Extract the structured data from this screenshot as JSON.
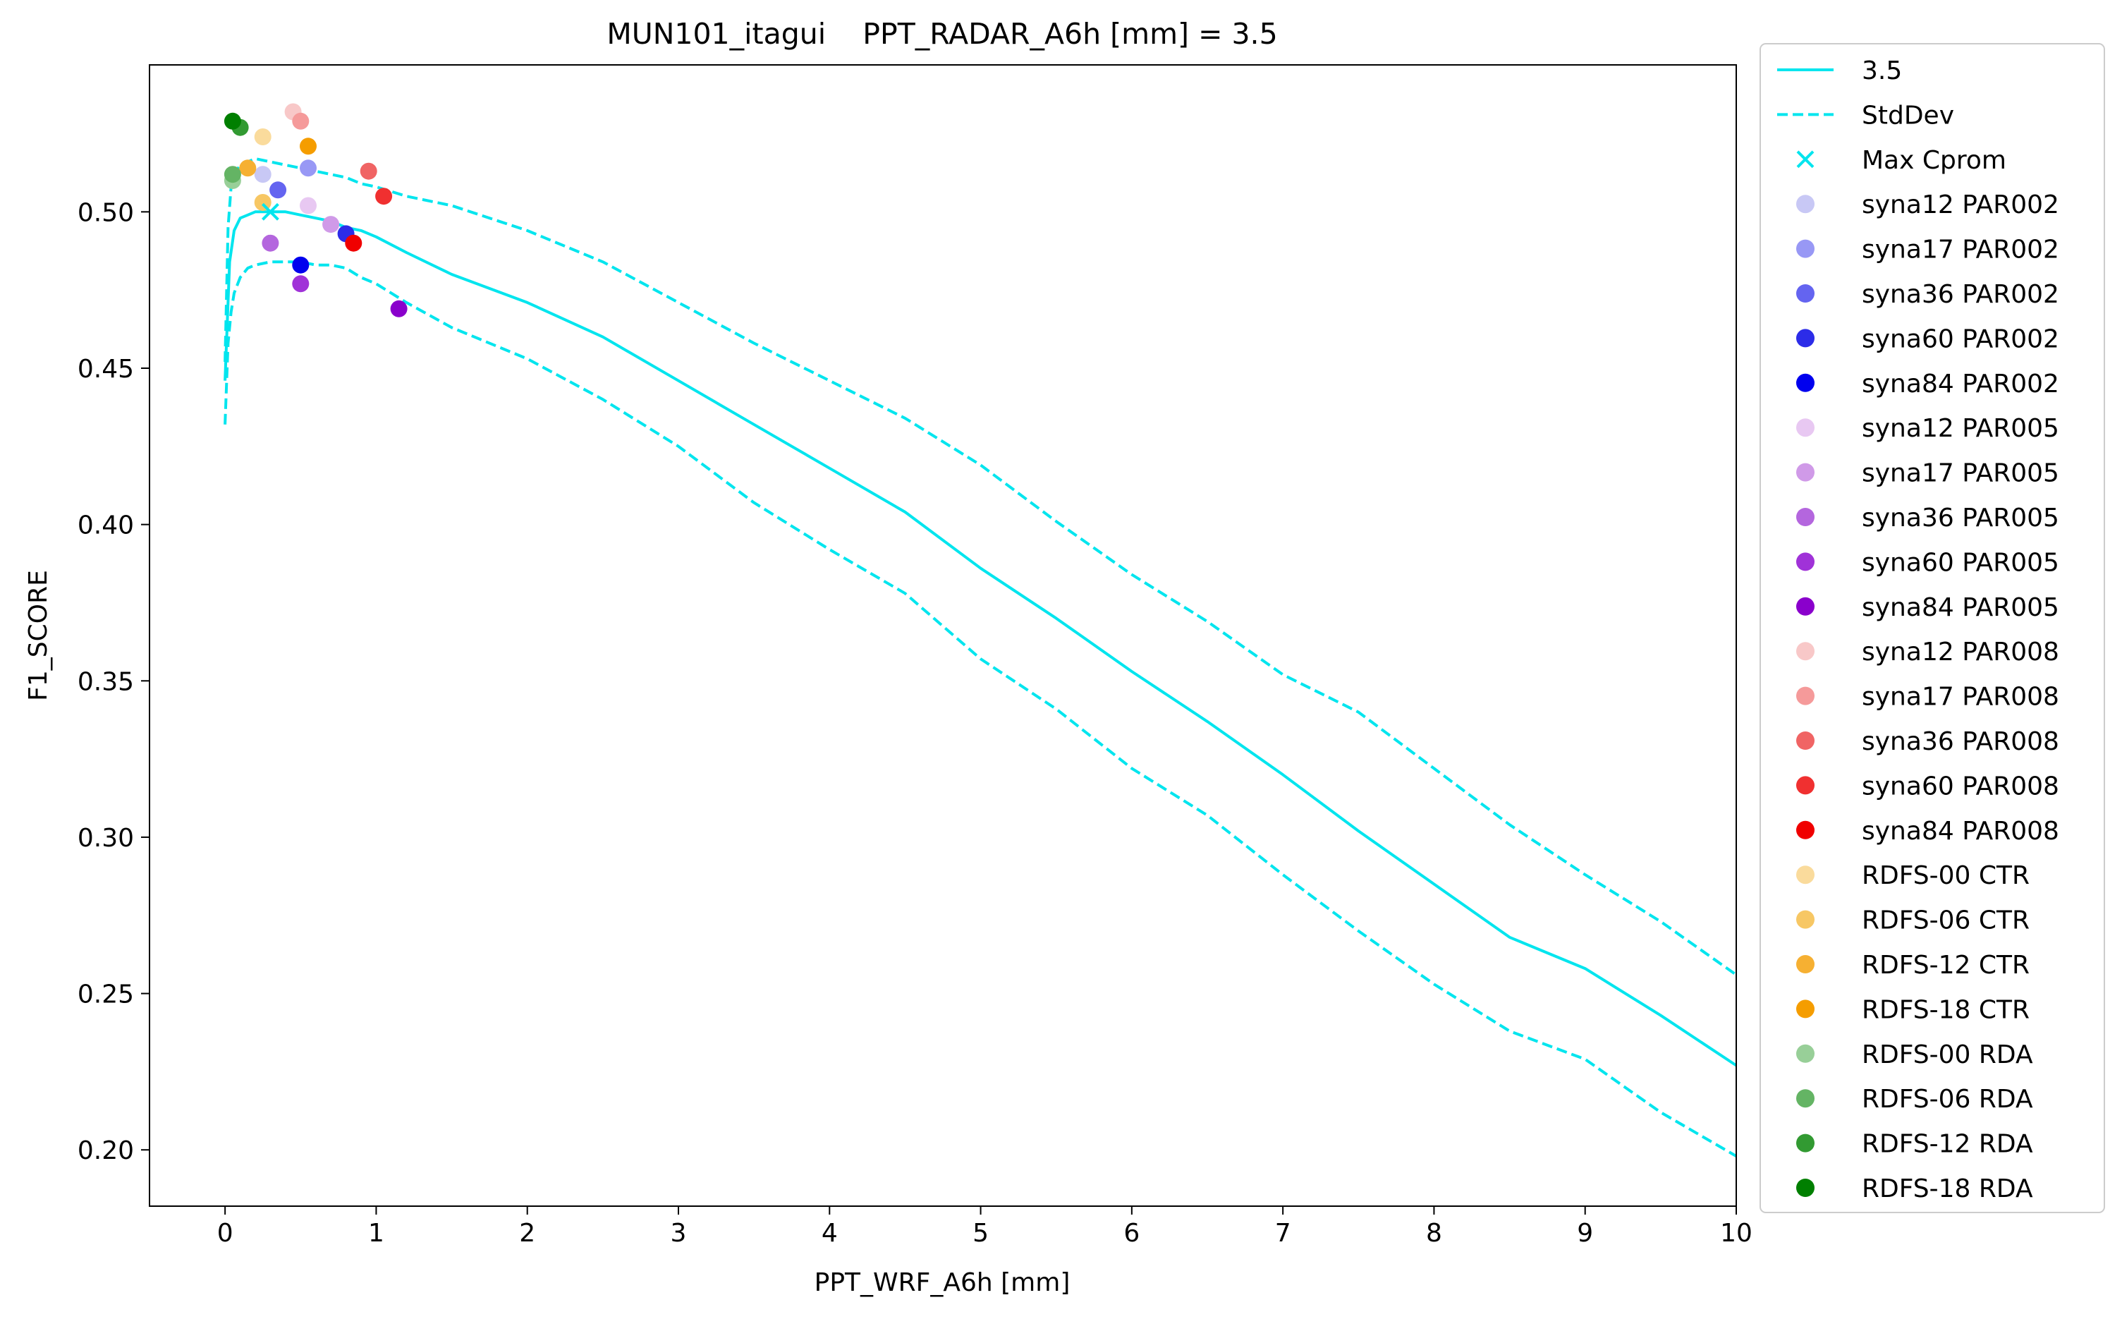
{
  "chart_data": {
    "type": "line",
    "title": "MUN101_itagui    PPT_RADAR_A6h [mm] = 3.5",
    "xlabel": "PPT_WRF_A6h [mm]",
    "ylabel": "F1_SCORE",
    "xlim": [
      -0.5,
      10
    ],
    "ylim": [
      0.182,
      0.547
    ],
    "xticks": [
      0,
      1,
      2,
      3,
      4,
      5,
      6,
      7,
      8,
      9,
      10
    ],
    "xtick_labels": [
      "0",
      "1",
      "2",
      "3",
      "4",
      "5",
      "6",
      "7",
      "8",
      "9",
      "10"
    ],
    "yticks": [
      0.2,
      0.25,
      0.3,
      0.35,
      0.4,
      0.45,
      0.5
    ],
    "ytick_labels": [
      "0.20",
      "0.25",
      "0.30",
      "0.35",
      "0.40",
      "0.45",
      "0.50"
    ],
    "grid": false,
    "legend_position": "outside-right",
    "series": [
      {
        "name": "3.5",
        "kind": "line",
        "style": "solid",
        "color": "#00e5ee",
        "x": [
          0,
          0.03,
          0.06,
          0.1,
          0.15,
          0.2,
          0.3,
          0.4,
          0.5,
          0.6,
          0.7,
          0.8,
          0.9,
          1.0,
          1.2,
          1.5,
          2,
          2.5,
          3,
          3.5,
          4,
          4.5,
          5,
          5.5,
          6,
          6.5,
          7,
          7.5,
          8,
          8.5,
          9,
          9.5,
          10
        ],
        "y": [
          0.446,
          0.484,
          0.494,
          0.498,
          0.499,
          0.5,
          0.5,
          0.5,
          0.499,
          0.498,
          0.497,
          0.495,
          0.494,
          0.492,
          0.487,
          0.48,
          0.471,
          0.46,
          0.446,
          0.432,
          0.418,
          0.404,
          0.386,
          0.37,
          0.353,
          0.337,
          0.32,
          0.302,
          0.285,
          0.268,
          0.258,
          0.243,
          0.227
        ]
      },
      {
        "name": "StdDev",
        "kind": "line",
        "style": "dashed",
        "color": "#00e5ee",
        "x": [
          0,
          0.02,
          0.04,
          0.06,
          0.1,
          0.15,
          0.2,
          0.3,
          0.4,
          0.5,
          0.6,
          0.7,
          0.8,
          0.9,
          1.0,
          1.2,
          1.5,
          2,
          2.5,
          3,
          3.5,
          4,
          4.5,
          5,
          5.5,
          6,
          6.5,
          7,
          7.5,
          8,
          8.5,
          9,
          9.5,
          10
        ],
        "y": [
          0.452,
          0.495,
          0.508,
          0.512,
          0.515,
          0.516,
          0.517,
          0.516,
          0.515,
          0.514,
          0.513,
          0.512,
          0.511,
          0.509,
          0.508,
          0.505,
          0.502,
          0.494,
          0.484,
          0.471,
          0.458,
          0.446,
          0.434,
          0.419,
          0.401,
          0.384,
          0.369,
          0.352,
          0.34,
          0.322,
          0.304,
          0.288,
          0.273,
          0.256
        ]
      },
      {
        "name": "",
        "kind": "line",
        "style": "dashed",
        "color": "#00e5ee",
        "x": [
          0,
          0.02,
          0.04,
          0.06,
          0.1,
          0.15,
          0.2,
          0.3,
          0.4,
          0.5,
          0.6,
          0.7,
          0.8,
          0.9,
          1.0,
          1.2,
          1.5,
          2,
          2.5,
          3,
          3.5,
          4,
          4.5,
          5,
          5.5,
          6,
          6.5,
          7,
          7.5,
          8,
          8.5,
          9,
          9.5,
          10
        ],
        "y": [
          0.432,
          0.458,
          0.468,
          0.474,
          0.479,
          0.482,
          0.483,
          0.484,
          0.484,
          0.484,
          0.483,
          0.483,
          0.482,
          0.479,
          0.477,
          0.471,
          0.463,
          0.453,
          0.44,
          0.425,
          0.407,
          0.392,
          0.378,
          0.357,
          0.341,
          0.322,
          0.307,
          0.288,
          0.27,
          0.253,
          0.238,
          0.229,
          0.212,
          0.198
        ]
      }
    ],
    "max_point": {
      "name": "Max Cprom",
      "marker": "x",
      "color": "#00e5ee",
      "x": 0.3,
      "y": 0.5
    },
    "points": [
      {
        "name": "syna12 PAR002",
        "color": "#c8c8f5",
        "x": 0.25,
        "y": 0.512
      },
      {
        "name": "syna17 PAR002",
        "color": "#9898f5",
        "x": 0.55,
        "y": 0.514
      },
      {
        "name": "syna36 PAR002",
        "color": "#6464f0",
        "x": 0.35,
        "y": 0.507
      },
      {
        "name": "syna60 PAR002",
        "color": "#2c2ce8",
        "x": 0.8,
        "y": 0.493
      },
      {
        "name": "syna84 PAR002",
        "color": "#0000ee",
        "x": 0.5,
        "y": 0.483
      },
      {
        "name": "syna12 PAR005",
        "color": "#e8c8f2",
        "x": 0.55,
        "y": 0.502
      },
      {
        "name": "syna17 PAR005",
        "color": "#d09ae8",
        "x": 0.7,
        "y": 0.496
      },
      {
        "name": "syna36 PAR005",
        "color": "#b466de",
        "x": 0.3,
        "y": 0.49
      },
      {
        "name": "syna60 PAR005",
        "color": "#a032d8",
        "x": 0.5,
        "y": 0.477
      },
      {
        "name": "syna84 PAR005",
        "color": "#8a00cc",
        "x": 1.15,
        "y": 0.469
      },
      {
        "name": "syna12 PAR008",
        "color": "#f8c8c8",
        "x": 0.45,
        "y": 0.532
      },
      {
        "name": "syna17 PAR008",
        "color": "#f59a9a",
        "x": 0.5,
        "y": 0.529
      },
      {
        "name": "syna36 PAR008",
        "color": "#f06464",
        "x": 0.95,
        "y": 0.513
      },
      {
        "name": "syna60 PAR008",
        "color": "#f03030",
        "x": 1.05,
        "y": 0.505
      },
      {
        "name": "syna84 PAR008",
        "color": "#f00000",
        "x": 0.85,
        "y": 0.49
      },
      {
        "name": "RDFS-00 CTR",
        "color": "#fadb9c",
        "x": 0.25,
        "y": 0.524
      },
      {
        "name": "RDFS-06 CTR",
        "color": "#f7c764",
        "x": 0.25,
        "y": 0.503
      },
      {
        "name": "RDFS-12 CTR",
        "color": "#f6b032",
        "x": 0.15,
        "y": 0.514
      },
      {
        "name": "RDFS-18 CTR",
        "color": "#f59d00",
        "x": 0.55,
        "y": 0.521
      },
      {
        "name": "RDFS-00 RDA",
        "color": "#98cf98",
        "x": 0.05,
        "y": 0.51
      },
      {
        "name": "RDFS-06 RDA",
        "color": "#64b464",
        "x": 0.05,
        "y": 0.512
      },
      {
        "name": "RDFS-12 RDA",
        "color": "#329a32",
        "x": 0.1,
        "y": 0.527
      },
      {
        "name": "RDFS-18 RDA",
        "color": "#007f00",
        "x": 0.05,
        "y": 0.529
      }
    ]
  }
}
